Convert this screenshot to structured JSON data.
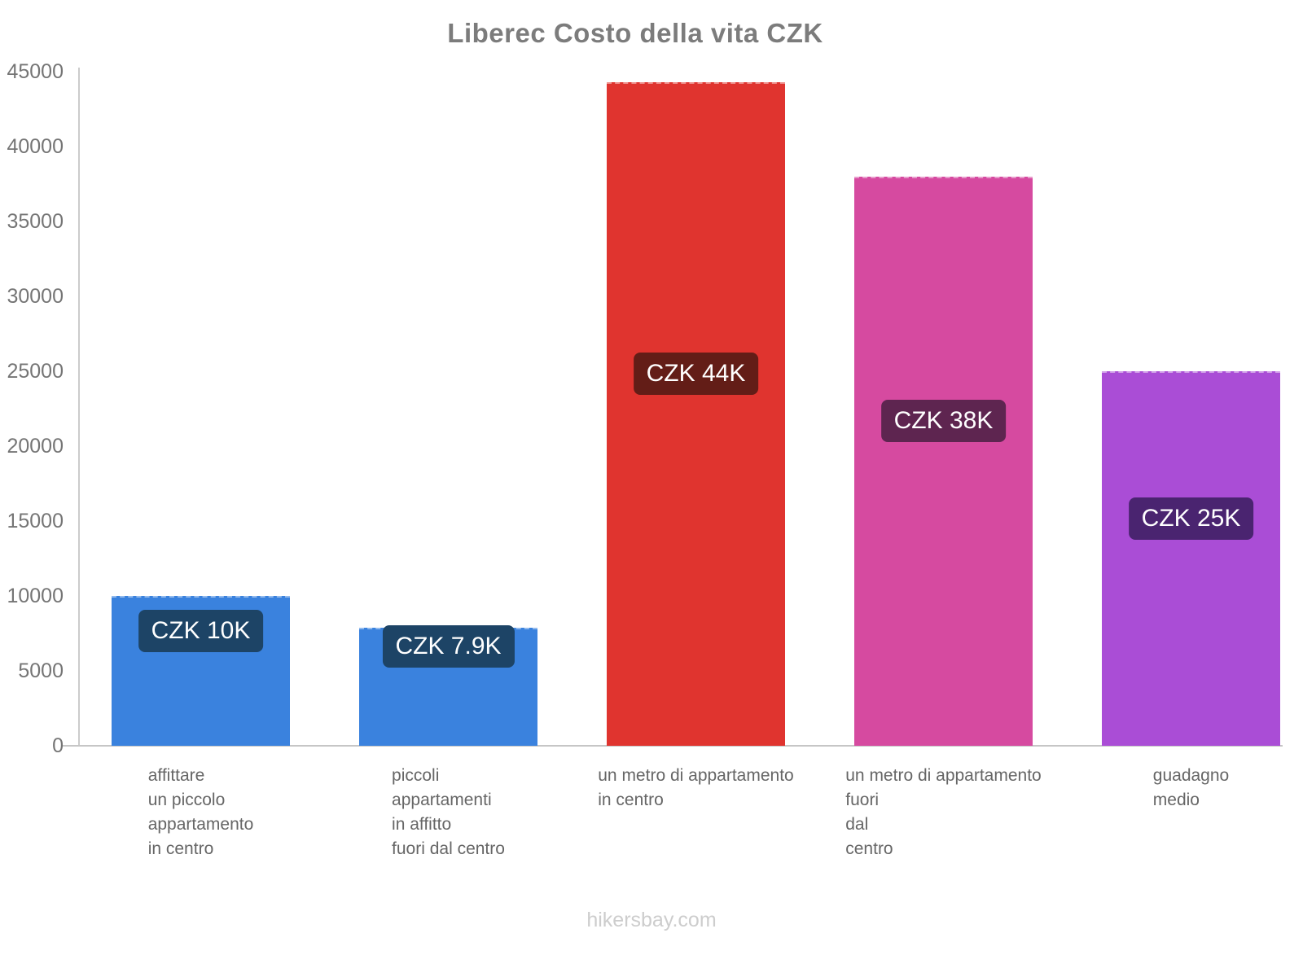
{
  "title": "Liberec Costo della vita CZK",
  "footer": "hikersbay.com",
  "chart_data": {
    "type": "bar",
    "title": "Liberec Costo della vita CZK",
    "categories": [
      "affittare un piccolo appartamento in centro",
      "piccoli appartamenti in affitto fuori dal centro",
      "un metro di appartamento in centro",
      "un metro di appartamento fuori dal centro",
      "guadagno medio"
    ],
    "category_lines": [
      [
        "affittare",
        "un piccolo",
        "appartamento",
        "in centro"
      ],
      [
        "piccoli",
        "appartamenti",
        "in affitto",
        "fuori dal centro"
      ],
      [
        "un metro di appartamento",
        "in centro"
      ],
      [
        "un metro di appartamento",
        "fuori",
        "dal",
        "centro"
      ],
      [
        "guadagno",
        "medio"
      ]
    ],
    "values": [
      10000,
      7900,
      44300,
      38000,
      25000
    ],
    "bar_labels": [
      "CZK 10K",
      "CZK 7.9K",
      "CZK 44K",
      "CZK 38K",
      "CZK 25K"
    ],
    "bar_colors": [
      "#3a82de",
      "#3a82de",
      "#e0342f",
      "#d64aa0",
      "#aa4dd6"
    ],
    "badge_colors": [
      "#1d4466",
      "#1d4466",
      "#631d17",
      "#5e2550",
      "#4a2470"
    ],
    "xlabel": "",
    "ylabel": "",
    "ylim": [
      0,
      45000
    ],
    "yticks": [
      0,
      5000,
      10000,
      15000,
      20000,
      25000,
      30000,
      35000,
      40000,
      45000
    ],
    "grid": false,
    "legend": false
  }
}
